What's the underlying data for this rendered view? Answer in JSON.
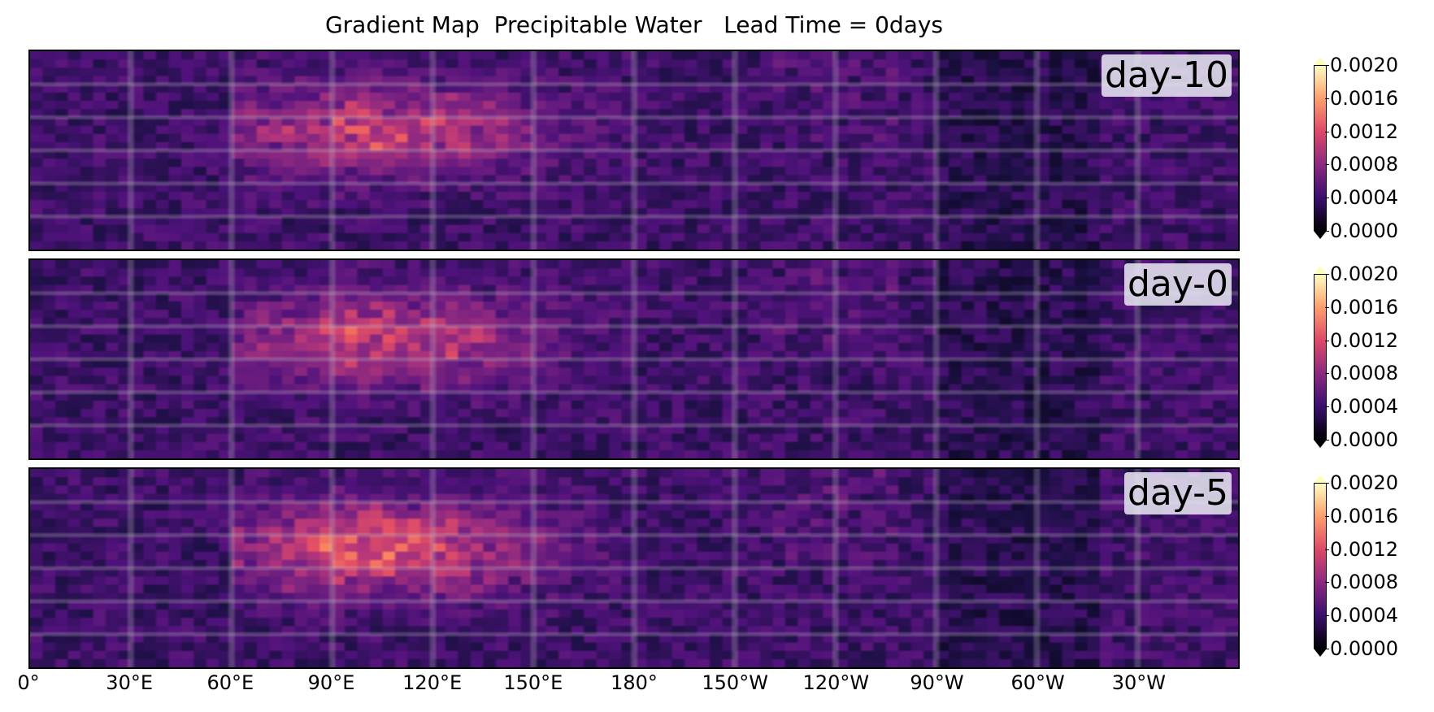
{
  "chart_data": {
    "type": "heatmap",
    "title": "Gradient Map  Precipitable Water   Lead Time = 0days",
    "colormap": "magma",
    "x_ticks": [
      "0°",
      "30°E",
      "60°E",
      "90°E",
      "120°E",
      "150°E",
      "180°",
      "150°W",
      "120°W",
      "90°W",
      "60°W",
      "30°W"
    ],
    "x_range_degrees_east": [
      0,
      360
    ],
    "grid": true,
    "panels": [
      {
        "label": "day-10",
        "clim": [
          0.0,
          0.002
        ],
        "hotspot_max": 0.0014
      },
      {
        "label": "day-0",
        "clim": [
          0.0,
          0.002
        ],
        "hotspot_max": 0.0014
      },
      {
        "label": "day-5",
        "clim": [
          0.0,
          0.002
        ],
        "hotspot_max": 0.0016
      }
    ],
    "colorbar_ticks": [
      "0.0020",
      "0.0016",
      "0.0012",
      "0.0008",
      "0.0004",
      "0.0000"
    ],
    "colorbar_extend": "both"
  }
}
